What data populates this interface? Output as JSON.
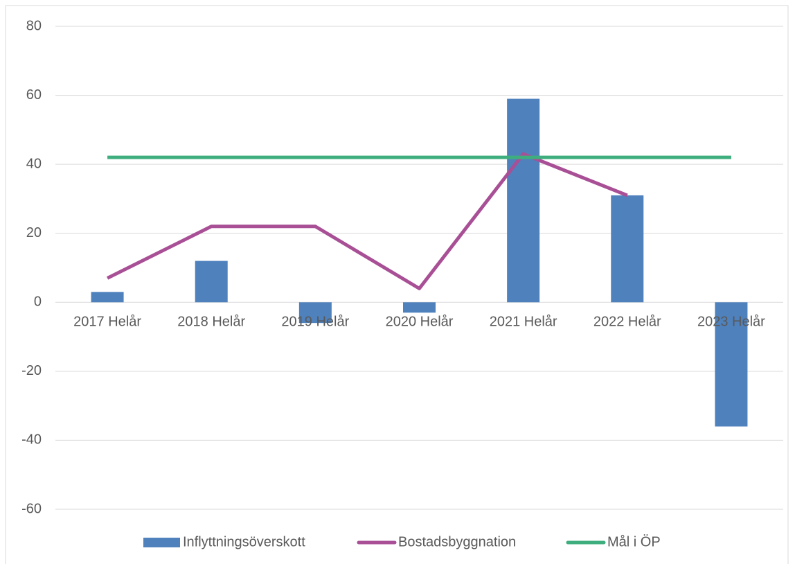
{
  "chart_data": {
    "type": "bar",
    "categories": [
      "2017 Helår",
      "2018 Helår",
      "2019 Helår",
      "2020 Helår",
      "2021 Helår",
      "2022 Helår",
      "2023 Helår"
    ],
    "series": [
      {
        "name": "Inflyttningsöverskott",
        "type": "bar",
        "color": "#4f81bd",
        "values": [
          3,
          12,
          -6,
          -3,
          59,
          31,
          -36
        ]
      },
      {
        "name": "Bostadsbyggnation",
        "type": "line",
        "color": "#a84f96",
        "values": [
          7,
          22,
          22,
          4,
          43,
          31,
          null
        ]
      },
      {
        "name": "Mål i ÖP",
        "type": "line",
        "color": "#3fae7e",
        "values": [
          42,
          42,
          42,
          42,
          42,
          42,
          42
        ]
      }
    ],
    "ylim": [
      -60,
      80
    ],
    "yticks": [
      -60,
      -40,
      -20,
      0,
      20,
      40,
      60,
      80
    ],
    "grid": true,
    "legend": "bottom"
  }
}
